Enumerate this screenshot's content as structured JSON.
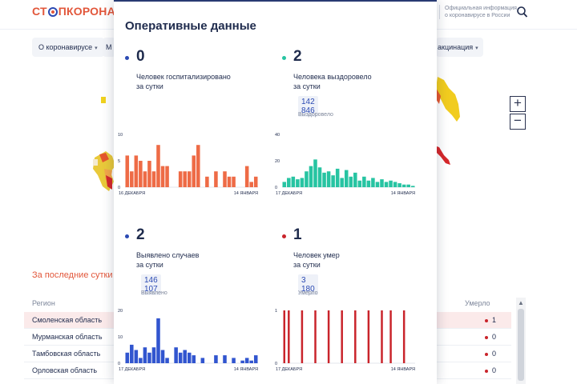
{
  "header": {
    "logo_part1": "СТ",
    "logo_part2": "ПКОРОНАВИ",
    "official_text": "Официальная информация о коронавирусе в России"
  },
  "nav": {
    "about": "О коронавирусе",
    "m_letter": "М",
    "vaccination": "акцинация"
  },
  "map": {
    "zoom_in": "+",
    "zoom_out": "−"
  },
  "table": {
    "section_title": "За последние сутки",
    "col_region": "Регион",
    "col_deaths": "Умерло",
    "rows": [
      {
        "region": "Смоленская область",
        "deaths": "1"
      },
      {
        "region": "Мурманская область",
        "deaths": "0"
      },
      {
        "region": "Тамбовская область",
        "deaths": "0"
      },
      {
        "region": "Орловская область",
        "deaths": "0"
      }
    ]
  },
  "modal": {
    "title": "Оперативные данные",
    "stats": [
      {
        "id": "hospitalized",
        "value": "0",
        "desc_line1": "Человек госпитализировано",
        "desc_line2": "за сутки",
        "total": "",
        "total_label": "",
        "dot_color": "#2b4ab3"
      },
      {
        "id": "recovered",
        "value": "2",
        "desc_line1": "Человека выздоровело",
        "desc_line2": "за сутки",
        "total": "142 846",
        "total_label": "Выздоровело",
        "dot_color": "#27c4a2"
      },
      {
        "id": "cases",
        "value": "2",
        "desc_line1": "Выявлено случаев",
        "desc_line2": "за сутки",
        "total": "146 107",
        "total_label": "Выявлено",
        "dot_color": "#2b4ab3"
      },
      {
        "id": "deaths",
        "value": "1",
        "desc_line1": "Человек умер",
        "desc_line2": "за сутки",
        "total": "3 180",
        "total_label": "Умерло",
        "dot_color": "#c9242b"
      }
    ]
  },
  "chart_data": [
    {
      "type": "bar",
      "name_id": "hospitalized",
      "color": "#ee6b46",
      "x_start_label": "16 ДЕКАБРЯ",
      "x_end_label": "14 ЯНВАРЯ",
      "y_ticks": [
        "0",
        "5",
        "10"
      ],
      "ylim": [
        0,
        10
      ],
      "values": [
        6,
        3,
        6,
        5,
        3,
        5,
        3,
        8,
        4,
        4,
        0,
        0,
        3,
        3,
        3,
        6,
        8,
        0,
        2,
        0,
        3,
        0,
        3,
        2,
        2,
        0,
        0,
        4,
        1,
        2
      ]
    },
    {
      "type": "bar",
      "name_id": "recovered",
      "color": "#27c4a2",
      "x_start_label": "17 ДЕКАБРЯ",
      "x_end_label": "14 ЯНВАРЯ",
      "y_ticks": [
        "0",
        "20",
        "40"
      ],
      "ylim": [
        0,
        40
      ],
      "values": [
        4,
        7,
        8,
        6,
        7,
        12,
        16,
        21,
        15,
        11,
        12,
        9,
        14,
        7,
        13,
        8,
        11,
        5,
        8,
        5,
        7,
        4,
        6,
        4,
        5,
        4,
        3,
        2,
        2,
        1
      ]
    },
    {
      "type": "bar",
      "name_id": "cases",
      "color": "#3155cf",
      "x_start_label": "17 ДЕКАБРЯ",
      "x_end_label": "14 ЯНВАРЯ",
      "y_ticks": [
        "0",
        "10",
        "20"
      ],
      "ylim": [
        0,
        20
      ],
      "values": [
        4,
        7,
        5,
        2,
        6,
        4,
        6,
        17,
        5,
        2,
        0,
        6,
        4,
        5,
        4,
        3,
        0,
        2,
        0,
        0,
        3,
        0,
        3,
        0,
        2,
        0,
        1,
        2,
        1,
        3
      ]
    },
    {
      "type": "bar",
      "name_id": "deaths",
      "color": "#c9242b",
      "x_start_label": "17 ДЕКАБРЯ",
      "x_end_label": "14 ЯНВАРЯ",
      "y_ticks": [
        "0",
        "1"
      ],
      "ylim": [
        0,
        1
      ],
      "values": [
        1,
        1,
        0,
        0,
        1,
        0,
        0,
        1,
        0,
        0,
        1,
        0,
        0,
        1,
        0,
        0,
        1,
        0,
        0,
        1,
        0,
        0,
        1,
        0,
        1,
        0,
        0,
        1,
        0,
        0
      ]
    }
  ]
}
